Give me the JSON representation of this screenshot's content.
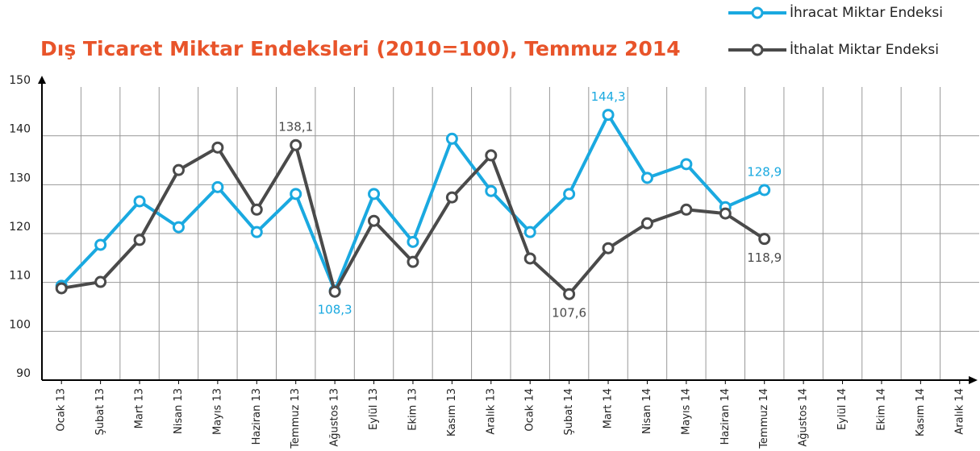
{
  "chart_data": {
    "type": "line",
    "title": "Dış Ticaret Miktar Endeksleri (2010=100), Temmuz 2014",
    "categories": [
      "Ocak 13",
      "Şubat 13",
      "Mart 13",
      "Nisan 13",
      "Mayıs 13",
      "Haziran 13",
      "Temmuz 13",
      "Ağustos 13",
      "Eylül 13",
      "Ekim 13",
      "Kasım 13",
      "Aralık 13",
      "Ocak 14",
      "Şubat 14",
      "Mart 14",
      "Nisan 14",
      "Mayıs 14",
      "Haziran 14",
      "Temmuz 14",
      "Ağustos 14",
      "Eylül 14",
      "Ekim 14",
      "Kasım 14",
      "Aralık 14"
    ],
    "series": [
      {
        "name": "İhracat Miktar Endeksi",
        "color": "#1aa9e0",
        "values": [
          109.3,
          117.7,
          126.6,
          121.3,
          129.5,
          120.3,
          128.1,
          108.3,
          128.1,
          118.3,
          139.4,
          128.7,
          120.3,
          128.1,
          144.3,
          131.4,
          134.2,
          125.4,
          128.9,
          null,
          null,
          null,
          null,
          null
        ],
        "value_labels": [
          null,
          null,
          null,
          null,
          null,
          null,
          null,
          "108,3",
          null,
          null,
          null,
          null,
          null,
          null,
          "144,3",
          null,
          null,
          null,
          "128,9",
          null,
          null,
          null,
          null,
          null
        ]
      },
      {
        "name": "İthalat Miktar Endeksi",
        "color": "#4a4a4a",
        "values": [
          108.8,
          110.1,
          118.7,
          133.0,
          137.6,
          124.9,
          138.1,
          108.1,
          122.6,
          114.2,
          127.4,
          136.0,
          114.9,
          107.6,
          117.0,
          122.1,
          124.9,
          124.1,
          118.9,
          null,
          null,
          null,
          null,
          null
        ],
        "value_labels": [
          null,
          null,
          null,
          null,
          null,
          null,
          "138,1",
          null,
          null,
          null,
          null,
          null,
          null,
          "107,6",
          null,
          null,
          null,
          null,
          "118,9",
          null,
          null,
          null,
          null,
          null
        ]
      }
    ],
    "ylim": [
      90,
      150
    ],
    "yticks": [
      90,
      100,
      110,
      120,
      130,
      140,
      150
    ],
    "grid": true,
    "legend": "top-right"
  }
}
